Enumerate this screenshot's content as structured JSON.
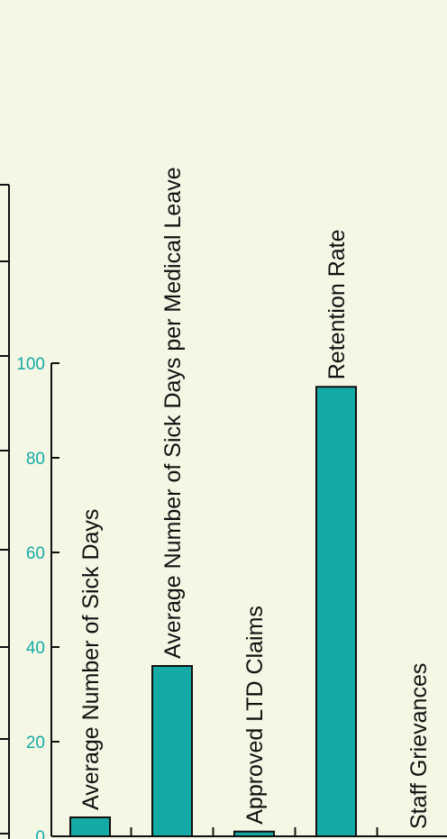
{
  "chart_data": {
    "type": "bar",
    "categories": [
      "Average Number of Sick Days",
      "Average Number of Sick Days per Medical Leave",
      "Approved LTD Claims",
      "Retention Rate",
      "Staff Grievances"
    ],
    "values": [
      4,
      36,
      1,
      95,
      0
    ],
    "ylim": [
      0,
      100
    ],
    "yticks": [
      0,
      20,
      40,
      60,
      80,
      100
    ],
    "title": "",
    "xlabel": "",
    "ylabel": "",
    "grid": false,
    "legend": "none",
    "colors": {
      "bar": "#14aaa6",
      "tick_label": "#14aaa6",
      "background": "#f4f7e4",
      "axis": "#111111"
    }
  }
}
